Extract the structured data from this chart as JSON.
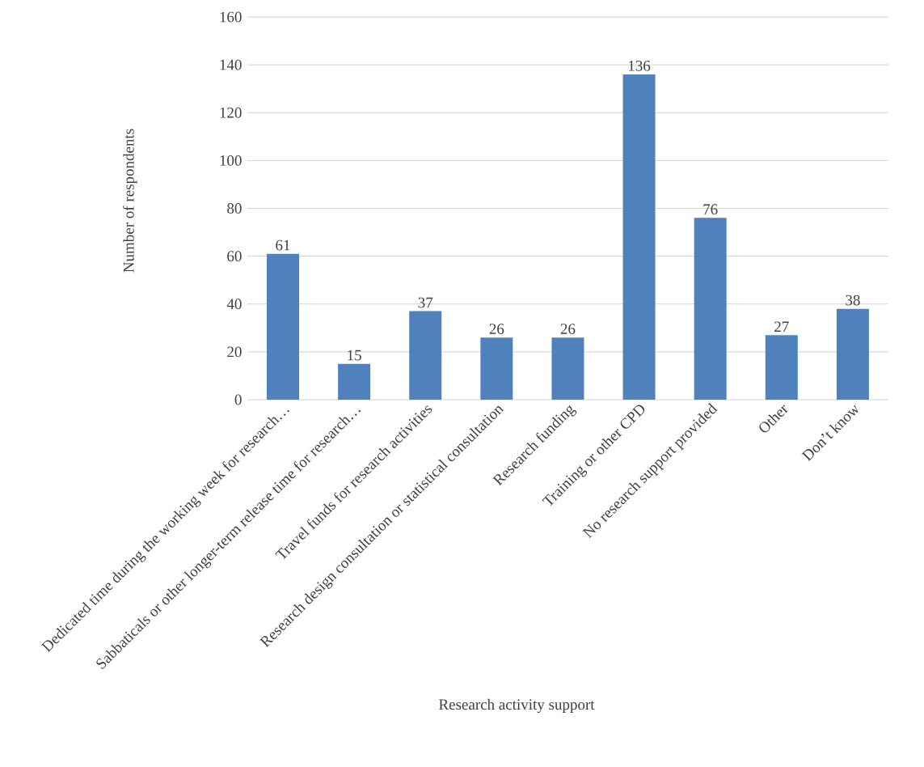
{
  "chart_data": {
    "type": "bar",
    "xlabel": "Research activity support",
    "ylabel": "Number of respondents",
    "categories": [
      "Dedicated time during the working week for research…",
      "Sabbaticals or other longer-term release time for research…",
      "Travel funds for research activities",
      "Research design consultation or statistical consultation",
      "Research funding",
      "Training or other CPD",
      "No research support provided",
      "Other",
      "Don’t know"
    ],
    "values": [
      61,
      15,
      37,
      26,
      26,
      136,
      76,
      27,
      38
    ],
    "color": "#4f81bd",
    "ylim": [
      0,
      160
    ],
    "yticks": [
      0,
      20,
      40,
      60,
      80,
      100,
      120,
      140,
      160
    ],
    "grid": "y",
    "data_labels": true
  }
}
